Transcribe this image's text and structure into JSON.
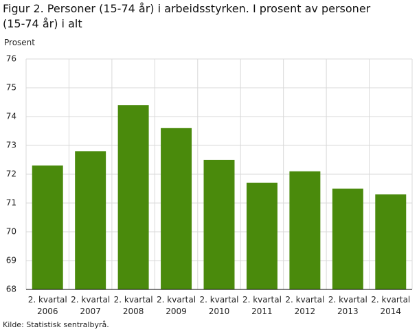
{
  "chart_data": {
    "type": "bar",
    "title": "Figur 2. Personer (15-74 år) i arbeidsstyrken. I prosent av personer (15-74 år) i alt",
    "y_label": "Prosent",
    "source": "Kilde: Statistisk sentralbyrå.",
    "categories": [
      "2. kvartal 2006",
      "2. kvartal 2007",
      "2. kvartal 2008",
      "2. kvartal 2009",
      "2. kvartal 2010",
      "2. kvartal 2011",
      "2. kvartal 2012",
      "2. kvartal 2013",
      "2. kvartal 2014"
    ],
    "values": [
      72.3,
      72.8,
      74.4,
      73.6,
      72.5,
      71.7,
      72.1,
      71.5,
      71.3
    ],
    "color": "#4a8a0c",
    "ylim": [
      68,
      76
    ],
    "yticks": [
      68,
      69,
      70,
      71,
      72,
      73,
      74,
      75,
      76
    ],
    "grid": true
  }
}
